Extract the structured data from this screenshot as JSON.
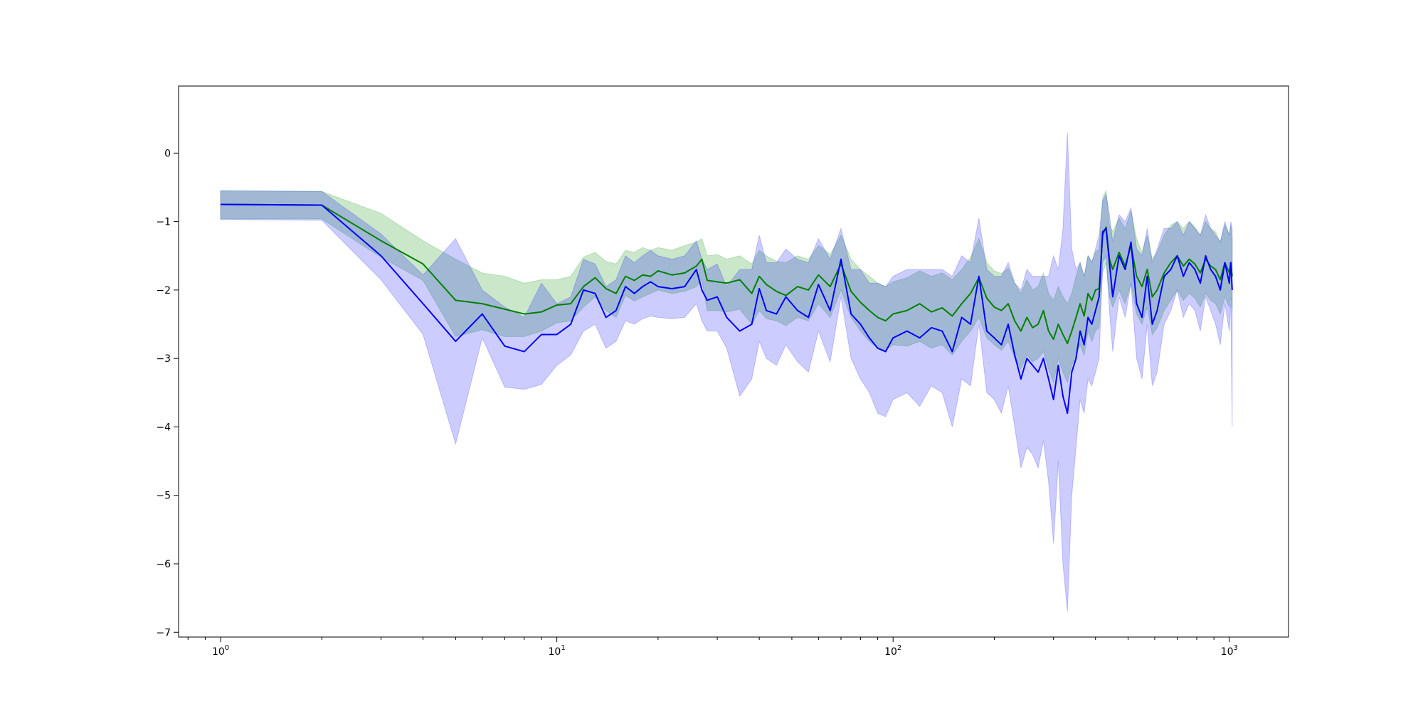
{
  "chart_data": {
    "type": "line",
    "title": "",
    "xlabel": "",
    "ylabel": "",
    "x_scale": "log",
    "xlim": [
      0.75,
      1500
    ],
    "ylim": [
      -7.07,
      0.98
    ],
    "grid": false,
    "legend": "none",
    "x_ticks": [
      {
        "value": 1,
        "base": "10",
        "exp": "0"
      },
      {
        "value": 10,
        "base": "10",
        "exp": "1"
      },
      {
        "value": 100,
        "base": "10",
        "exp": "2"
      },
      {
        "value": 1000,
        "base": "10",
        "exp": "3"
      }
    ],
    "y_ticks": [
      {
        "value": 0,
        "label": "0"
      },
      {
        "value": -1,
        "label": "−1"
      },
      {
        "value": -2,
        "label": "−2"
      },
      {
        "value": -3,
        "label": "−3"
      },
      {
        "value": -4,
        "label": "−4"
      },
      {
        "value": -5,
        "label": "−5"
      },
      {
        "value": -6,
        "label": "−6"
      },
      {
        "value": -7,
        "label": "−7"
      }
    ],
    "series": [
      {
        "color": "#008000",
        "band_color": "#2ca02c",
        "band_opacity": 0.25,
        "x": [
          1,
          2,
          3,
          4,
          5,
          6,
          7,
          8,
          9,
          10,
          11,
          12,
          13,
          14,
          15,
          16,
          17,
          18,
          19,
          20,
          22,
          24,
          26,
          27,
          28,
          30,
          32,
          35,
          38,
          40,
          42,
          45,
          48,
          52,
          56,
          60,
          65,
          70,
          75,
          80,
          85,
          90,
          95,
          100,
          110,
          120,
          130,
          140,
          150,
          160,
          170,
          180,
          190,
          200,
          210,
          220,
          230,
          240,
          250,
          260,
          270,
          280,
          290,
          300,
          310,
          320,
          330,
          340,
          350,
          360,
          370,
          380,
          390,
          400,
          410,
          420,
          430,
          440,
          450,
          470,
          490,
          510,
          530,
          550,
          570,
          590,
          610,
          640,
          670,
          700,
          730,
          760,
          790,
          820,
          850,
          880,
          910,
          940,
          970,
          1000,
          1010,
          1020
        ],
        "y": [
          -0.75,
          -0.76,
          -1.28,
          -1.62,
          -2.15,
          -2.2,
          -2.28,
          -2.35,
          -2.32,
          -2.22,
          -2.2,
          -1.95,
          -1.82,
          -1.98,
          -2.05,
          -1.8,
          -1.86,
          -1.78,
          -1.8,
          -1.72,
          -1.78,
          -1.75,
          -1.65,
          -1.55,
          -1.86,
          -1.88,
          -1.9,
          -1.85,
          -2.05,
          -1.8,
          -1.92,
          -2.02,
          -2.08,
          -1.95,
          -2.0,
          -1.78,
          -1.95,
          -1.62,
          -2.02,
          -2.18,
          -2.3,
          -2.4,
          -2.45,
          -2.35,
          -2.3,
          -2.2,
          -2.32,
          -2.26,
          -2.38,
          -2.2,
          -2.05,
          -1.82,
          -2.12,
          -2.25,
          -2.3,
          -2.2,
          -2.45,
          -2.6,
          -2.4,
          -2.55,
          -2.5,
          -2.3,
          -2.6,
          -2.72,
          -2.5,
          -2.65,
          -2.78,
          -2.6,
          -2.4,
          -2.2,
          -2.38,
          -2.05,
          -2.15,
          -2.0,
          -1.98,
          -1.2,
          -1.08,
          -1.55,
          -1.7,
          -1.45,
          -1.65,
          -1.35,
          -1.8,
          -1.95,
          -1.7,
          -2.1,
          -2.0,
          -1.75,
          -1.6,
          -1.5,
          -1.65,
          -1.55,
          -1.62,
          -1.75,
          -1.55,
          -1.65,
          -1.7,
          -1.85,
          -1.6,
          -1.75,
          -1.6,
          -1.8
        ],
        "y_lower": [
          -0.96,
          -0.96,
          -1.52,
          -1.86,
          -2.68,
          -2.58,
          -2.68,
          -2.68,
          -2.6,
          -2.48,
          -2.45,
          -2.25,
          -2.1,
          -2.3,
          -2.4,
          -2.08,
          -2.16,
          -2.1,
          -2.05,
          -2.0,
          -2.05,
          -2.02,
          -1.95,
          -1.85,
          -2.3,
          -2.3,
          -2.32,
          -2.28,
          -2.5,
          -2.3,
          -2.42,
          -2.45,
          -2.52,
          -2.4,
          -2.45,
          -2.2,
          -2.4,
          -2.0,
          -2.4,
          -2.6,
          -2.75,
          -2.85,
          -2.88,
          -2.8,
          -2.82,
          -2.75,
          -2.85,
          -2.8,
          -2.95,
          -2.75,
          -2.6,
          -2.4,
          -2.7,
          -2.8,
          -2.88,
          -2.75,
          -3.0,
          -3.15,
          -2.95,
          -3.05,
          -3.0,
          -2.9,
          -3.15,
          -3.35,
          -3.0,
          -3.2,
          -3.35,
          -3.1,
          -2.95,
          -2.8,
          -2.95,
          -2.6,
          -2.75,
          -2.6,
          -2.55,
          -1.75,
          -1.6,
          -2.1,
          -2.25,
          -2.0,
          -2.2,
          -1.9,
          -2.35,
          -2.5,
          -2.25,
          -2.65,
          -2.55,
          -2.3,
          -2.15,
          -2.0,
          -2.15,
          -2.05,
          -2.12,
          -2.25,
          -2.05,
          -2.15,
          -2.2,
          -2.35,
          -2.1,
          -2.25,
          -2.1,
          -2.3
        ],
        "y_upper": [
          -0.55,
          -0.56,
          -0.88,
          -1.28,
          -1.55,
          -1.75,
          -1.8,
          -1.9,
          -1.85,
          -1.85,
          -1.8,
          -1.52,
          -1.45,
          -1.58,
          -1.62,
          -1.42,
          -1.45,
          -1.38,
          -1.42,
          -1.38,
          -1.42,
          -1.35,
          -1.3,
          -1.25,
          -1.5,
          -1.48,
          -1.55,
          -1.5,
          -1.62,
          -1.42,
          -1.5,
          -1.58,
          -1.6,
          -1.5,
          -1.55,
          -1.35,
          -1.48,
          -1.2,
          -1.55,
          -1.7,
          -1.8,
          -1.9,
          -1.95,
          -1.88,
          -1.82,
          -1.72,
          -1.8,
          -1.75,
          -1.85,
          -1.7,
          -1.52,
          -1.25,
          -1.6,
          -1.72,
          -1.76,
          -1.68,
          -1.9,
          -2.05,
          -1.85,
          -2.0,
          -1.95,
          -1.75,
          -2.05,
          -2.15,
          -1.95,
          -2.1,
          -2.2,
          -2.05,
          -1.8,
          -1.6,
          -1.8,
          -1.5,
          -1.58,
          -1.45,
          -1.4,
          -0.65,
          -0.55,
          -1.05,
          -1.15,
          -0.95,
          -1.1,
          -0.85,
          -1.25,
          -1.45,
          -1.2,
          -1.55,
          -1.45,
          -1.2,
          -1.05,
          -1.0,
          -1.1,
          -1.0,
          -1.08,
          -1.2,
          -1.0,
          -1.1,
          -1.15,
          -1.3,
          -1.05,
          -1.2,
          -1.05,
          -1.25
        ]
      },
      {
        "color": "#0000ff",
        "band_color": "#0000ff",
        "band_opacity": 0.2,
        "x": [
          1,
          2,
          3,
          4,
          5,
          6,
          7,
          8,
          9,
          10,
          11,
          12,
          13,
          14,
          15,
          16,
          17,
          18,
          19,
          20,
          22,
          24,
          26,
          27,
          28,
          30,
          32,
          35,
          38,
          40,
          42,
          45,
          48,
          52,
          56,
          60,
          65,
          70,
          75,
          80,
          85,
          90,
          95,
          100,
          110,
          120,
          130,
          140,
          150,
          160,
          170,
          180,
          190,
          200,
          210,
          220,
          230,
          240,
          250,
          260,
          270,
          280,
          290,
          300,
          310,
          320,
          330,
          340,
          350,
          360,
          370,
          380,
          390,
          400,
          410,
          420,
          430,
          440,
          450,
          470,
          490,
          510,
          530,
          550,
          570,
          590,
          610,
          640,
          670,
          700,
          730,
          760,
          790,
          820,
          850,
          880,
          910,
          940,
          970,
          1000,
          1010,
          1020
        ],
        "y": [
          -0.75,
          -0.76,
          -1.5,
          -2.2,
          -2.75,
          -2.35,
          -2.82,
          -2.9,
          -2.65,
          -2.65,
          -2.5,
          -2.0,
          -2.05,
          -2.4,
          -2.3,
          -1.95,
          -2.05,
          -1.95,
          -1.88,
          -1.95,
          -1.98,
          -1.95,
          -1.7,
          -2.0,
          -2.15,
          -2.1,
          -2.4,
          -2.6,
          -2.5,
          -1.98,
          -2.3,
          -2.35,
          -2.1,
          -2.3,
          -2.4,
          -1.92,
          -2.3,
          -1.55,
          -2.35,
          -2.5,
          -2.7,
          -2.85,
          -2.9,
          -2.7,
          -2.6,
          -2.7,
          -2.55,
          -2.6,
          -2.9,
          -2.4,
          -2.5,
          -1.8,
          -2.6,
          -2.7,
          -2.8,
          -2.5,
          -2.95,
          -3.3,
          -3.0,
          -3.1,
          -3.2,
          -3.0,
          -3.3,
          -3.6,
          -3.1,
          -3.55,
          -3.8,
          -3.2,
          -3.0,
          -2.6,
          -2.8,
          -2.4,
          -2.5,
          -2.3,
          -2.1,
          -1.15,
          -1.1,
          -1.6,
          -2.1,
          -1.5,
          -1.7,
          -1.3,
          -2.2,
          -2.4,
          -1.8,
          -2.5,
          -2.3,
          -1.8,
          -1.7,
          -1.5,
          -1.8,
          -1.6,
          -1.7,
          -1.9,
          -1.5,
          -1.7,
          -1.8,
          -2.0,
          -1.6,
          -1.9,
          -1.6,
          -2.0
        ],
        "y_lower": [
          -0.97,
          -0.98,
          -1.85,
          -2.65,
          -4.25,
          -2.7,
          -3.42,
          -3.45,
          -3.38,
          -3.1,
          -2.95,
          -2.6,
          -2.5,
          -2.85,
          -2.75,
          -2.45,
          -2.5,
          -2.42,
          -2.38,
          -2.4,
          -2.42,
          -2.4,
          -2.2,
          -2.45,
          -2.6,
          -2.6,
          -2.85,
          -3.55,
          -3.3,
          -2.75,
          -3.0,
          -3.1,
          -2.8,
          -3.05,
          -3.2,
          -2.6,
          -3.05,
          -2.1,
          -3.0,
          -3.3,
          -3.5,
          -3.8,
          -3.85,
          -3.6,
          -3.5,
          -3.7,
          -3.4,
          -3.5,
          -4.0,
          -3.3,
          -3.4,
          -2.5,
          -3.5,
          -3.6,
          -3.8,
          -3.4,
          -4.0,
          -4.6,
          -4.3,
          -4.4,
          -4.6,
          -4.2,
          -4.8,
          -5.7,
          -4.5,
          -6.0,
          -6.7,
          -5.0,
          -4.3,
          -3.6,
          -3.8,
          -3.3,
          -3.4,
          -3.2,
          -3.0,
          -1.6,
          -1.5,
          -2.3,
          -2.9,
          -2.1,
          -2.4,
          -1.9,
          -3.0,
          -3.3,
          -2.5,
          -3.4,
          -3.2,
          -2.5,
          -2.3,
          -2.0,
          -2.4,
          -2.2,
          -2.3,
          -2.6,
          -2.1,
          -2.3,
          -2.5,
          -2.8,
          -2.2,
          -2.6,
          -2.2,
          -4.0
        ],
        "y_upper": [
          -0.55,
          -0.56,
          -1.18,
          -1.78,
          -1.25,
          -2.0,
          -2.25,
          -2.4,
          -1.9,
          -2.2,
          -2.1,
          -1.55,
          -1.62,
          -1.95,
          -1.85,
          -1.5,
          -1.6,
          -1.5,
          -1.42,
          -1.5,
          -1.55,
          -1.5,
          -1.28,
          -1.55,
          -1.7,
          -1.62,
          -1.95,
          -1.7,
          -1.7,
          -1.2,
          -1.6,
          -1.6,
          -1.4,
          -1.55,
          -1.6,
          -1.25,
          -1.55,
          -1.1,
          -1.7,
          -1.7,
          -1.9,
          -1.9,
          -1.95,
          -1.8,
          -1.7,
          -1.7,
          -1.7,
          -1.7,
          -1.8,
          -1.5,
          -1.6,
          -0.95,
          -1.7,
          -1.8,
          -1.8,
          -1.6,
          -1.9,
          -2.0,
          -1.7,
          -1.8,
          -1.8,
          -1.8,
          -1.8,
          -1.5,
          -1.7,
          -1.1,
          0.3,
          -1.4,
          -1.7,
          -1.6,
          -1.8,
          -1.5,
          -1.6,
          -1.4,
          -1.2,
          -0.7,
          -0.6,
          -0.9,
          -1.3,
          -0.9,
          -1.0,
          -0.8,
          -1.4,
          -1.5,
          -1.1,
          -1.6,
          -1.4,
          -1.1,
          -1.1,
          -1.0,
          -1.2,
          -1.0,
          -1.1,
          -1.2,
          -0.9,
          -1.1,
          -1.2,
          -1.3,
          -1.0,
          -1.2,
          -1.0,
          -1.1
        ]
      }
    ]
  }
}
